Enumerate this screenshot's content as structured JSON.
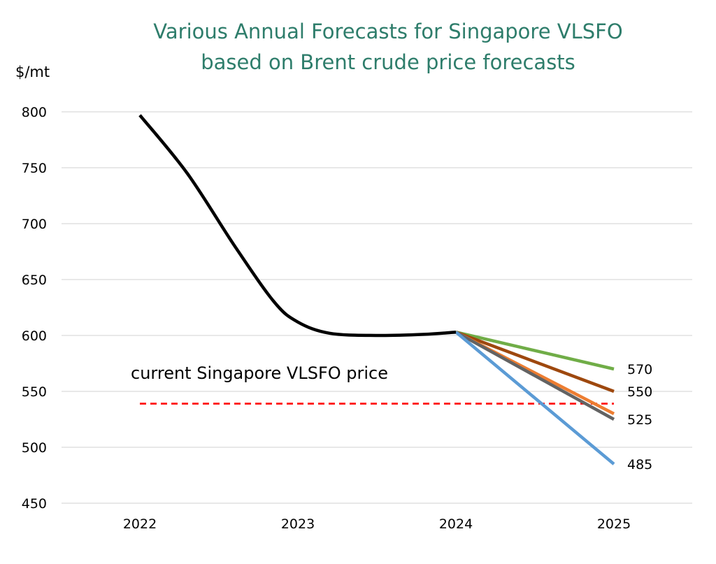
{
  "chart_data": {
    "type": "line",
    "title_lines": [
      "Various Annual Forecasts for Singapore VLSFO",
      "based on Brent crude price forecasts"
    ],
    "ylabel": "$/mt",
    "xlabel": "",
    "categories": [
      "2022",
      "2023",
      "2024",
      "2025"
    ],
    "ylim": [
      450,
      800
    ],
    "yticks": [
      800,
      750,
      700,
      650,
      600,
      550,
      500,
      450
    ],
    "grid": true,
    "history": {
      "color": "#000000",
      "points": [
        {
          "x": 2022,
          "y": 797
        },
        {
          "x": 2022.3,
          "y": 745
        },
        {
          "x": 2022.6,
          "y": 680
        },
        {
          "x": 2022.85,
          "y": 630
        },
        {
          "x": 2023,
          "y": 612
        },
        {
          "x": 2023.2,
          "y": 602
        },
        {
          "x": 2023.5,
          "y": 600
        },
        {
          "x": 2023.8,
          "y": 601
        },
        {
          "x": 2024,
          "y": 603
        }
      ]
    },
    "series": [
      {
        "color": "#70ad47",
        "values": [
          {
            "x": 2024,
            "y": 603
          },
          {
            "x": 2025,
            "y": 570
          }
        ],
        "end_label": "570"
      },
      {
        "color": "#9e480e",
        "values": [
          {
            "x": 2024,
            "y": 603
          },
          {
            "x": 2025,
            "y": 550
          }
        ],
        "end_label": "550"
      },
      {
        "color": "#ed7d31",
        "values": [
          {
            "x": 2024,
            "y": 603
          },
          {
            "x": 2025,
            "y": 530
          }
        ],
        "end_label": ""
      },
      {
        "color": "#636363",
        "values": [
          {
            "x": 2024,
            "y": 603
          },
          {
            "x": 2025,
            "y": 525
          }
        ],
        "end_label": "525"
      },
      {
        "color": "#5b9bd5",
        "values": [
          {
            "x": 2024,
            "y": 603
          },
          {
            "x": 2025,
            "y": 485
          }
        ],
        "end_label": "485"
      }
    ],
    "reference_line": {
      "label": "current Singapore VLSFO price",
      "value": 539,
      "x_from": 2022,
      "x_to": 2025,
      "color": "#ff0000",
      "style": "dashed"
    }
  }
}
